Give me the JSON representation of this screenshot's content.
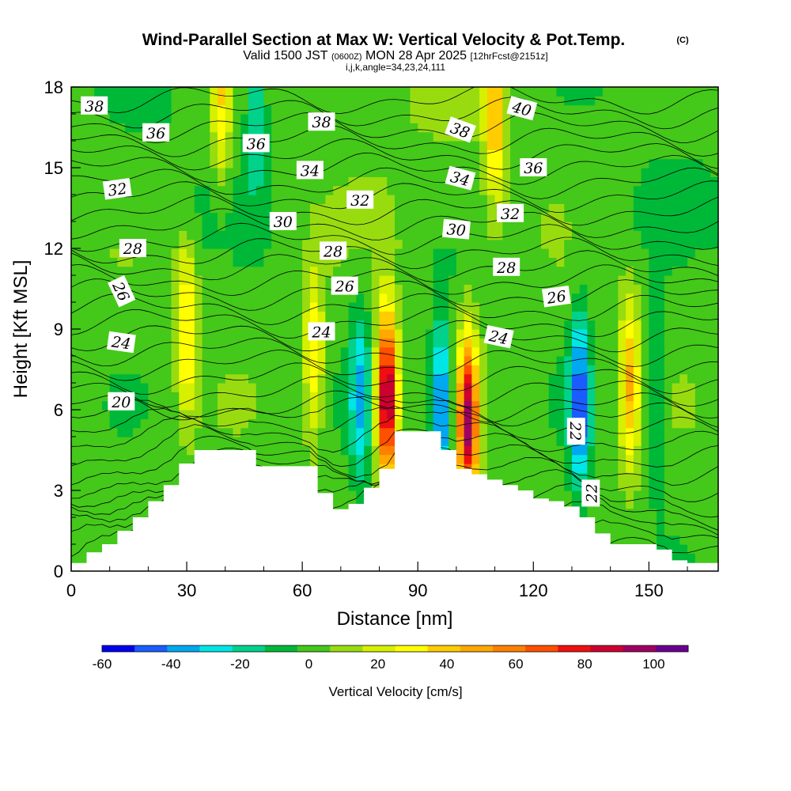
{
  "title": {
    "main": "Wind-Parallel Section at Max W: Vertical Velocity & Pot.Temp.",
    "copyright": "(C)",
    "valid_prefix": "Valid 1500 JST",
    "valid_utc": "(0600Z)",
    "valid_date": "MON 28 Apr 2025",
    "forecast": "[12hrFcst@2151z]",
    "indices": "i,j,k,angle=34,23,24,111"
  },
  "chart_data": {
    "type": "heatmap",
    "xlabel": "Distance [nm]",
    "ylabel": "Height [Kft MSL]",
    "xlim": [
      0,
      168
    ],
    "ylim": [
      0,
      18
    ],
    "x_ticks": [
      "0",
      "30",
      "60",
      "90",
      "120",
      "150"
    ],
    "y_ticks": [
      "0",
      "3",
      "6",
      "9",
      "12",
      "15",
      "18"
    ],
    "colorbar": {
      "label": "Vertical Velocity [cm/s]",
      "levels": [
        -60,
        -50,
        -40,
        -30,
        -20,
        -10,
        0,
        10,
        20,
        30,
        40,
        50,
        60,
        70,
        80,
        90,
        100,
        110
      ],
      "tick_labels": [
        "-60",
        "-40",
        "-20",
        "0",
        "20",
        "40",
        "60",
        "80",
        "100"
      ],
      "colors": [
        "#0000ee",
        "#1a5cff",
        "#00a8f0",
        "#00e6e6",
        "#00d28c",
        "#00b838",
        "#44c81a",
        "#98dc10",
        "#d6f000",
        "#ffff00",
        "#ffcc00",
        "#ffa800",
        "#ff8000",
        "#ff5000",
        "#ee1010",
        "#cc0030",
        "#a00060",
        "#6a0090"
      ]
    },
    "terrain_heights_kft": [
      0.3,
      0.7,
      1.0,
      1.5,
      2.0,
      2.6,
      3.2,
      4.0,
      4.5,
      4.5,
      4.5,
      4.5,
      3.9,
      3.9,
      3.9,
      3.9,
      2.9,
      2.3,
      2.5,
      3.1,
      3.8,
      5.2,
      5.2,
      5.2,
      4.5,
      3.8,
      3.6,
      3.4,
      3.2,
      3.0,
      2.7,
      2.6,
      2.4,
      2.0,
      1.4,
      1.0,
      1.0,
      1.0,
      0.8,
      0.4,
      0.3,
      0.3,
      0.3
    ],
    "wind_cells": [
      {
        "x": 82,
        "y": 6.5,
        "peak": 105
      },
      {
        "x": 103,
        "y": 5.5,
        "peak": 95
      },
      {
        "x": 96,
        "y": 6.0,
        "peak": -55
      },
      {
        "x": 75,
        "y": 6.5,
        "peak": -35
      },
      {
        "x": 132,
        "y": 6.2,
        "peak": -55
      },
      {
        "x": 145,
        "y": 7.0,
        "peak": 45
      },
      {
        "x": 30,
        "y": 9.0,
        "peak": 40
      },
      {
        "x": 63,
        "y": 8.0,
        "peak": 35
      },
      {
        "x": 48,
        "y": 17.0,
        "peak": -22
      },
      {
        "x": 110,
        "y": 17.0,
        "peak": 45
      },
      {
        "x": 39,
        "y": 17.5,
        "peak": 35
      },
      {
        "x": 152,
        "y": 6.5,
        "peak": -20
      }
    ],
    "contour_labels": [
      {
        "text": "38",
        "x": 6,
        "y": 17.3,
        "rot": 0
      },
      {
        "text": "36",
        "x": 22,
        "y": 16.3,
        "rot": 0
      },
      {
        "text": "36",
        "x": 48,
        "y": 15.9,
        "rot": 0
      },
      {
        "text": "38",
        "x": 65,
        "y": 16.7,
        "rot": 0
      },
      {
        "text": "38",
        "x": 101,
        "y": 16.4,
        "rot": 20
      },
      {
        "text": "40",
        "x": 117,
        "y": 17.2,
        "rot": 15
      },
      {
        "text": "34",
        "x": 62,
        "y": 14.9,
        "rot": 0
      },
      {
        "text": "34",
        "x": 101,
        "y": 14.6,
        "rot": 15
      },
      {
        "text": "36",
        "x": 120,
        "y": 15.0,
        "rot": 0
      },
      {
        "text": "32",
        "x": 12,
        "y": 14.2,
        "rot": -8
      },
      {
        "text": "32",
        "x": 75,
        "y": 13.8,
        "rot": 0
      },
      {
        "text": "32",
        "x": 114,
        "y": 13.3,
        "rot": 0
      },
      {
        "text": "30",
        "x": 55,
        "y": 13.0,
        "rot": 0
      },
      {
        "text": "30",
        "x": 100,
        "y": 12.7,
        "rot": 5
      },
      {
        "text": "28",
        "x": 16,
        "y": 12.0,
        "rot": 0
      },
      {
        "text": "28",
        "x": 68,
        "y": 11.9,
        "rot": 0
      },
      {
        "text": "28",
        "x": 113,
        "y": 11.3,
        "rot": 0
      },
      {
        "text": "26",
        "x": 13,
        "y": 10.4,
        "rot": 65
      },
      {
        "text": "26",
        "x": 71,
        "y": 10.6,
        "rot": 0
      },
      {
        "text": "26",
        "x": 126,
        "y": 10.2,
        "rot": -8
      },
      {
        "text": "24",
        "x": 13,
        "y": 8.5,
        "rot": 8
      },
      {
        "text": "24",
        "x": 65,
        "y": 8.9,
        "rot": 0
      },
      {
        "text": "24",
        "x": 111,
        "y": 8.7,
        "rot": 12
      },
      {
        "text": "20",
        "x": 13,
        "y": 6.3,
        "rot": 0
      },
      {
        "text": "22",
        "x": 131,
        "y": 5.2,
        "rot": 90
      },
      {
        "text": "22",
        "x": 135,
        "y": 2.9,
        "rot": -90
      }
    ]
  }
}
